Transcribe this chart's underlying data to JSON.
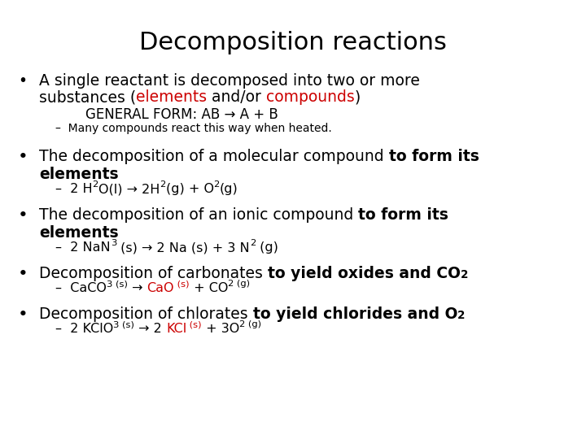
{
  "title": "Decomposition reactions",
  "bg": "#ffffff",
  "black": "#000000",
  "red": "#cc0000",
  "title_fs": 22,
  "body_fs": 13.5,
  "eq_fs": 11.5,
  "small_fs": 10,
  "indent_fs": 12,
  "dash_fs": 10
}
